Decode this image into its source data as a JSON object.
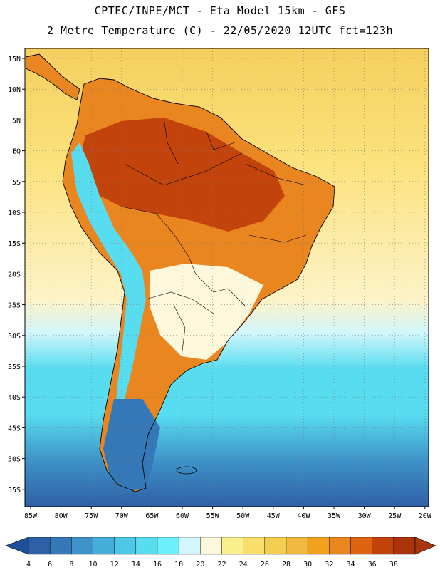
{
  "title_line1": "CPTEC/INPE/MCT -  Eta Model 15km - GFS",
  "title_line2": "2 Metre Temperature (C) - 22/05/2020 12UTC fct=123h",
  "lat_labels": [
    "15N",
    "10N",
    "5N",
    "EQ",
    "5S",
    "10S",
    "15S",
    "20S",
    "25S",
    "30S",
    "35S",
    "40S",
    "45S",
    "50S",
    "55S"
  ],
  "lon_labels": [
    "85W",
    "80W",
    "75W",
    "70W",
    "65W",
    "60W",
    "55W",
    "50W",
    "45W",
    "40W",
    "35W",
    "30W",
    "25W",
    "20W"
  ],
  "colorbar": {
    "labels": [
      "4",
      "6",
      "8",
      "10",
      "12",
      "14",
      "16",
      "18",
      "20",
      "22",
      "24",
      "26",
      "28",
      "30",
      "32",
      "34",
      "36",
      "38"
    ],
    "colors": [
      "#2f5fa6",
      "#3478b8",
      "#3e93c9",
      "#46aedb",
      "#4ec7e6",
      "#58dcef",
      "#6df0fb",
      "#d2f6fb",
      "#fdf7dc",
      "#faef8e",
      "#f7df6a",
      "#f3cf51",
      "#efba3f",
      "#f2a11e",
      "#e9861f",
      "#dc6413",
      "#c2430c",
      "#ab3309"
    ],
    "low_arrow_color": "#1f4f99",
    "high_arrow_color": "#a9340d"
  },
  "map_colors": {
    "ocean_north": "#f5cf5e",
    "ocean_warm": "#fbe27c",
    "ocean_mid": "#fdf3c8",
    "ocean_cool": "#d2f6fb",
    "ocean_cold": "#58dcef",
    "ocean_deep": "#3e93c9",
    "ocean_south": "#2f5fa6",
    "land_hot": "#c2430c",
    "land_warm": "#e9861f",
    "land_mild": "#f7df6a",
    "land_cool": "#fdf7dc",
    "andes": "#58dcef",
    "patagonia": "#3478b8"
  }
}
